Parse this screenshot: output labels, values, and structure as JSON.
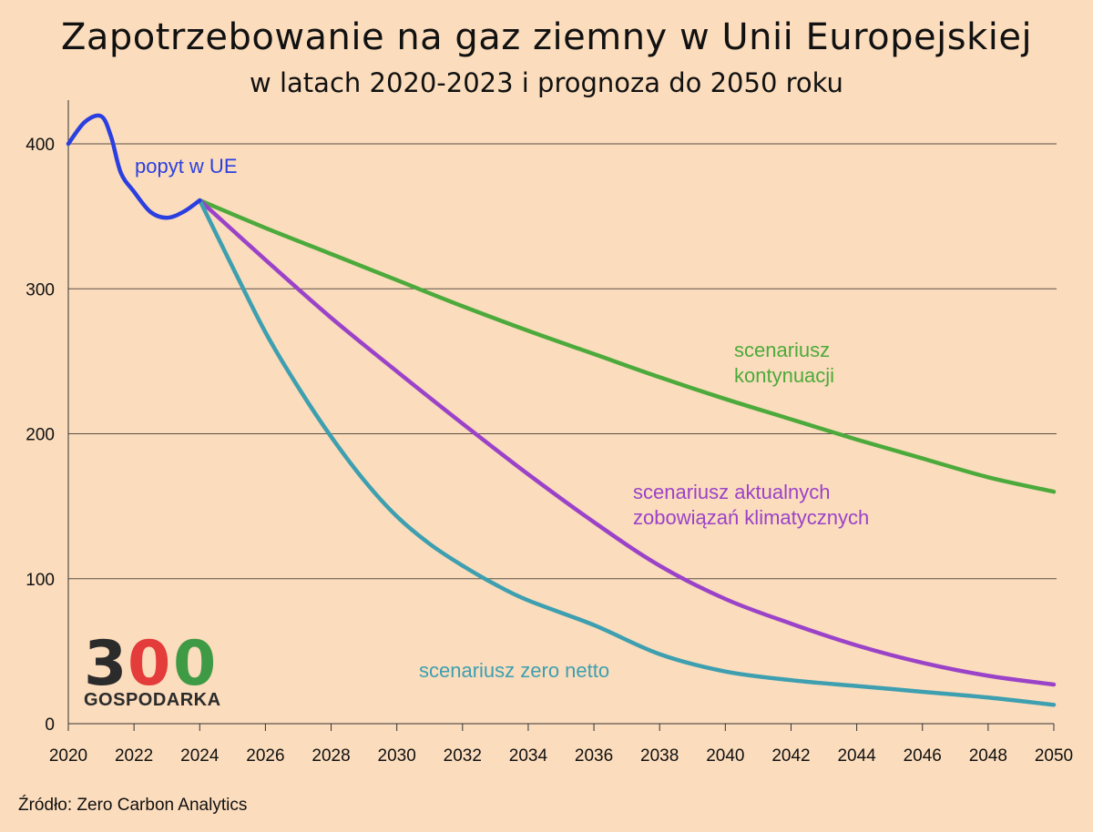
{
  "chart_data": {
    "type": "line",
    "title": "Zapotrzebowanie na gaz ziemny w Unii Europejskiej",
    "subtitle": "w latach 2020-2023 i prognoza do 2050 roku",
    "xlabel": "",
    "ylabel": "",
    "xlim": [
      2020,
      2050
    ],
    "ylim": [
      0,
      420
    ],
    "x_ticks": [
      2020,
      2022,
      2024,
      2026,
      2028,
      2030,
      2032,
      2034,
      2036,
      2038,
      2040,
      2042,
      2044,
      2046,
      2048,
      2050
    ],
    "y_ticks": [
      0,
      100,
      200,
      300,
      400
    ],
    "grid": "horizontal",
    "series": [
      {
        "name": "popyt w UE",
        "color": "#2b3fe0",
        "x": [
          2020,
          2020.5,
          2021,
          2021.3,
          2021.6,
          2022,
          2022.5,
          2023,
          2023.5,
          2024
        ],
        "y": [
          400,
          415,
          419,
          405,
          380,
          367,
          353,
          349,
          353,
          361
        ]
      },
      {
        "name": "scenariusz kontynuacji",
        "color": "#4caa3c",
        "x": [
          2024,
          2026,
          2028,
          2030,
          2032,
          2034,
          2036,
          2038,
          2040,
          2042,
          2044,
          2046,
          2048,
          2050
        ],
        "y": [
          361,
          342,
          324,
          306,
          288,
          271,
          255,
          239,
          224,
          210,
          196,
          183,
          170,
          160
        ]
      },
      {
        "name": "scenariusz aktualnych zobowiązań klimatycznych",
        "color": "#9b43c8",
        "x": [
          2024,
          2026,
          2028,
          2030,
          2032,
          2034,
          2036,
          2038,
          2040,
          2042,
          2044,
          2046,
          2048,
          2050
        ],
        "y": [
          361,
          320,
          280,
          243,
          207,
          172,
          139,
          109,
          86,
          69,
          54,
          42,
          33,
          27
        ]
      },
      {
        "name": "scenariusz zero netto",
        "color": "#3d9fb0",
        "x": [
          2024,
          2025,
          2026,
          2027,
          2028,
          2029,
          2030,
          2031,
          2032,
          2033,
          2034,
          2036,
          2038,
          2040,
          2042,
          2044,
          2046,
          2048,
          2050
        ],
        "y": [
          361,
          315,
          270,
          232,
          198,
          168,
          143,
          124,
          109,
          96,
          85,
          68,
          48,
          36,
          30,
          26,
          22,
          18,
          13
        ]
      }
    ],
    "annotations": [
      {
        "text": "popyt w UE",
        "series": 0
      },
      {
        "text": "scenariusz",
        "series": 1
      },
      {
        "text": "kontynuacji",
        "series": 1
      },
      {
        "text": "scenariusz aktualnych",
        "series": 2
      },
      {
        "text": "zobowiązań klimatycznych",
        "series": 2
      },
      {
        "text": "scenariusz zero netto",
        "series": 3
      }
    ]
  },
  "logo": {
    "digits": [
      "3",
      "0",
      "0"
    ],
    "digit_colors": [
      "#2b2b2b",
      "#e43b3b",
      "#3f9a45"
    ],
    "text": "GOSPODARKA"
  },
  "source": "Źródło: Zero Carbon Analytics"
}
